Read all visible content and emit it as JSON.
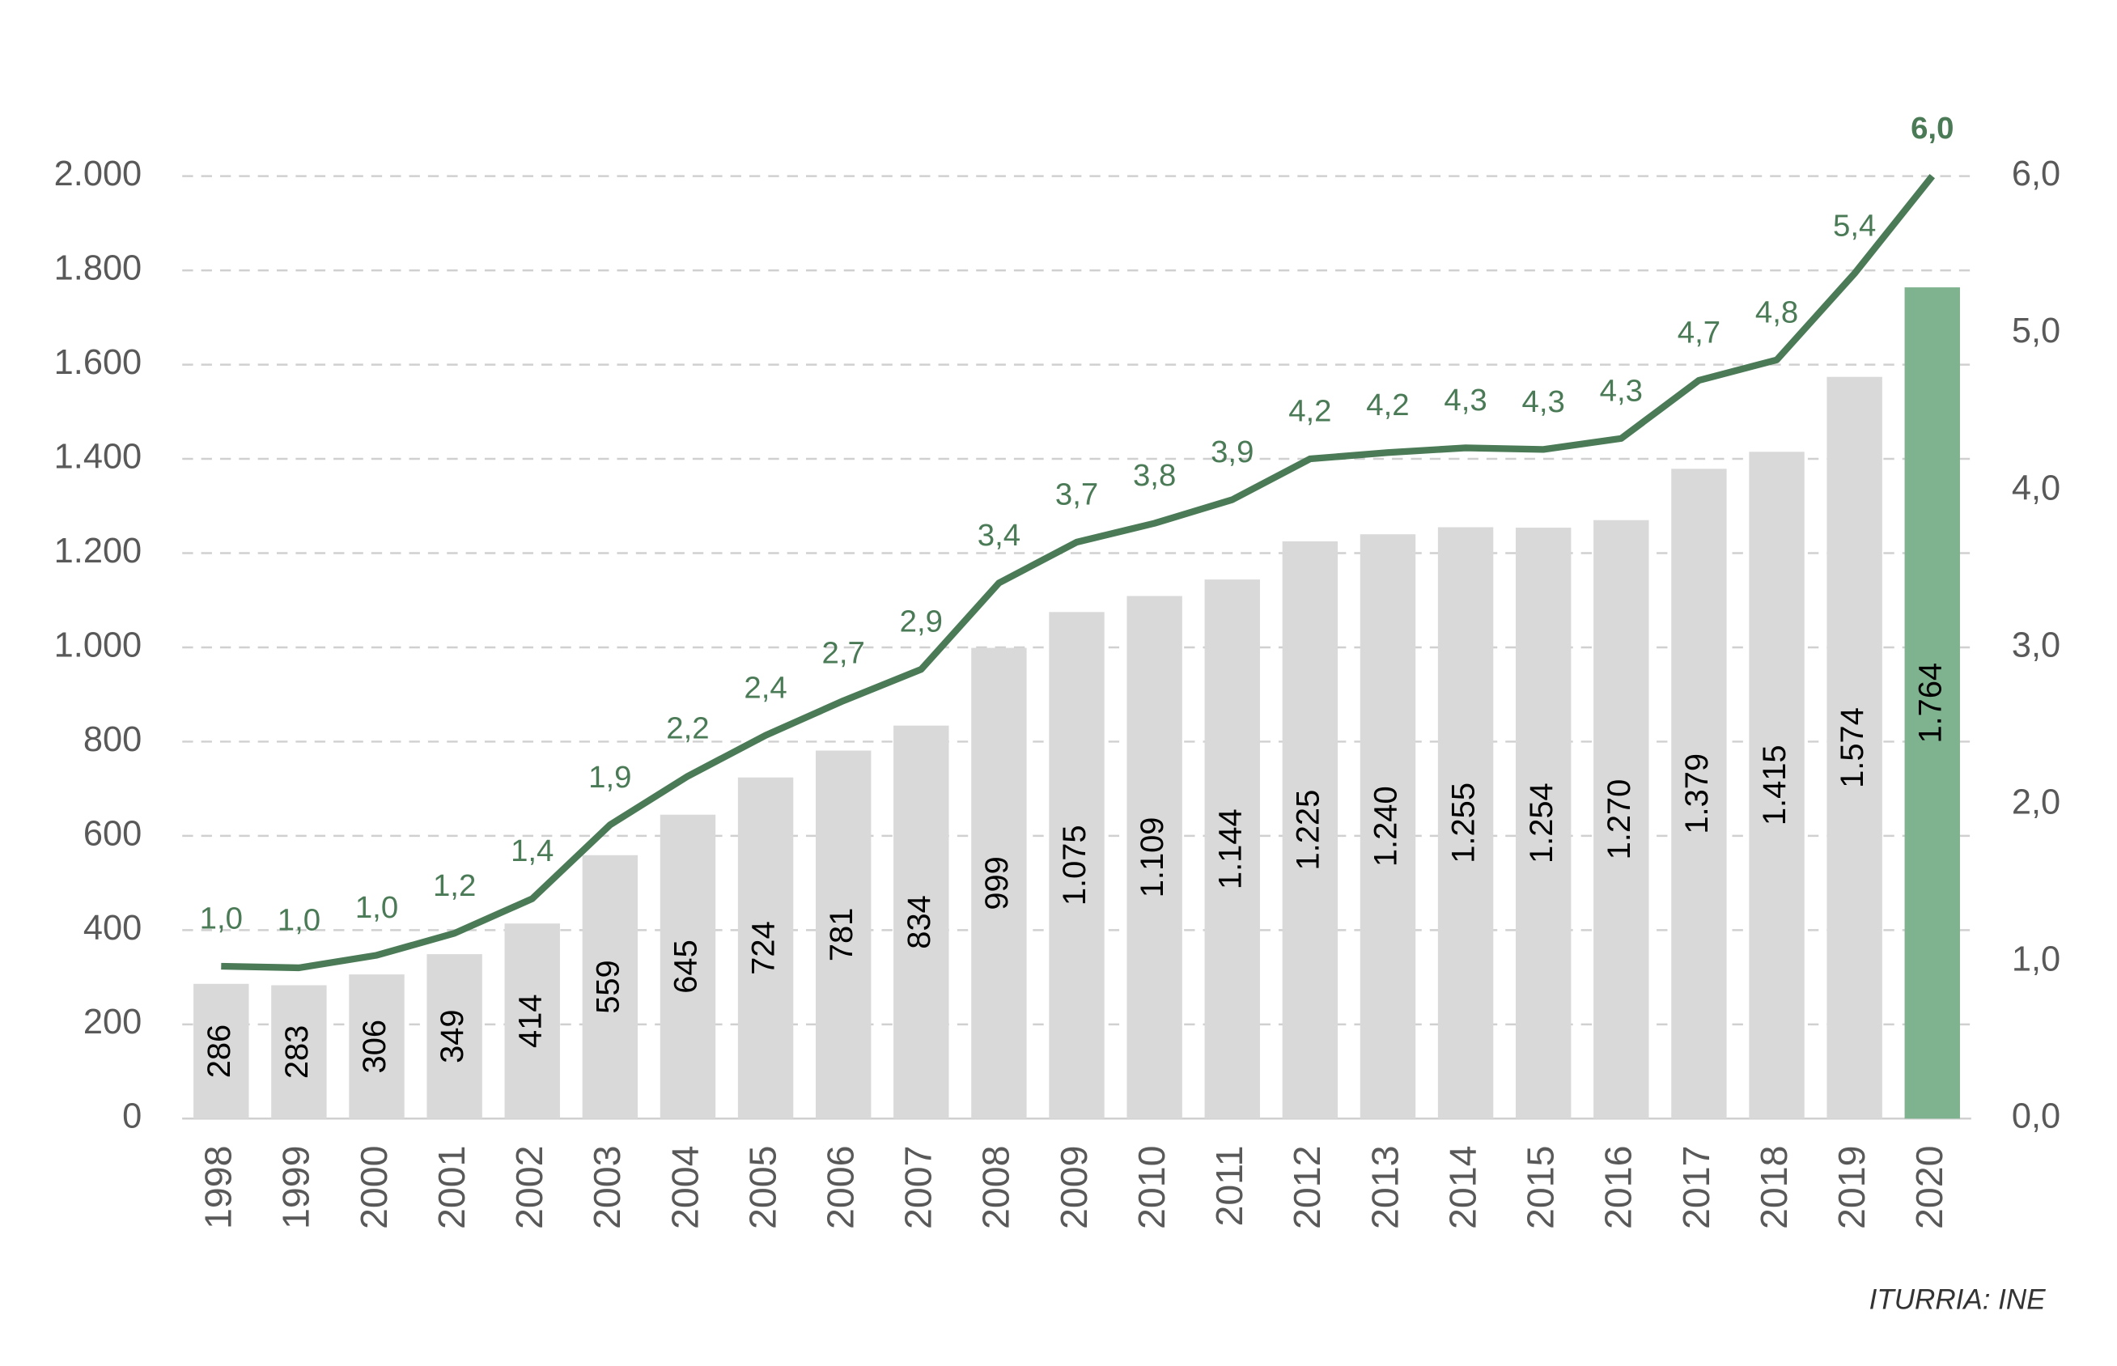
{
  "chart_data": {
    "type": "combo",
    "categories": [
      "1998",
      "1999",
      "2000",
      "2001",
      "2002",
      "2003",
      "2004",
      "2005",
      "2006",
      "2007",
      "2008",
      "2009",
      "2010",
      "2011",
      "2012",
      "2013",
      "2014",
      "2015",
      "2016",
      "2017",
      "2018",
      "2019",
      "2020"
    ],
    "series": [
      {
        "type": "bar",
        "values": [
          286,
          283,
          306,
          349,
          414,
          559,
          645,
          724,
          781,
          834,
          999,
          1075,
          1109,
          1144,
          1225,
          1240,
          1255,
          1254,
          1270,
          1379,
          1415,
          1574,
          1764
        ],
        "value_labels": [
          "286",
          "283",
          "306",
          "349",
          "414",
          "559",
          "645",
          "724",
          "781",
          "834",
          "999",
          "1.075",
          "1.109",
          "1.144",
          "1.225",
          "1.240",
          "1.255",
          "1.254",
          "1.270",
          "1.379",
          "1.415",
          "1.574",
          "1.764"
        ],
        "colors": [
          "#d9d9d9",
          "#d9d9d9",
          "#d9d9d9",
          "#d9d9d9",
          "#d9d9d9",
          "#d9d9d9",
          "#d9d9d9",
          "#d9d9d9",
          "#d9d9d9",
          "#d9d9d9",
          "#d9d9d9",
          "#d9d9d9",
          "#d9d9d9",
          "#d9d9d9",
          "#d9d9d9",
          "#d9d9d9",
          "#d9d9d9",
          "#d9d9d9",
          "#d9d9d9",
          "#d9d9d9",
          "#d9d9d9",
          "#d9d9d9",
          "#7fb28f"
        ]
      },
      {
        "type": "line",
        "axis": "y2",
        "color": "#4a7a56",
        "values": [
          0.97,
          0.96,
          1.04,
          1.18,
          1.4,
          1.87,
          2.18,
          2.44,
          2.66,
          2.86,
          3.41,
          3.67,
          3.79,
          3.94,
          4.2,
          4.24,
          4.27,
          4.26,
          4.33,
          4.7,
          4.83,
          5.38,
          6.0
        ],
        "value_labels": [
          "1,0",
          "1,0",
          "1,0",
          "1,2",
          "1,4",
          "1,9",
          "2,2",
          "2,4",
          "2,7",
          "2,9",
          "3,4",
          "3,7",
          "3,8",
          "3,9",
          "4,2",
          "4,2",
          "4,3",
          "4,3",
          "4,3",
          "4,7",
          "4,8",
          "5,4",
          "6,0"
        ]
      }
    ],
    "ylim": [
      0,
      2000
    ],
    "yticks": [
      0,
      200,
      400,
      600,
      800,
      {
        "value": 1000,
        "label": "1.000"
      },
      {
        "value": 1200,
        "label": "1.200"
      },
      {
        "value": 1400,
        "label": "1.400"
      },
      {
        "value": 1600,
        "label": "1.600"
      },
      {
        "value": 1800,
        "label": "1.800"
      },
      {
        "value": 2000,
        "label": "2.000"
      }
    ],
    "y2lim": [
      0,
      6
    ],
    "y2ticks": [
      {
        "value": 0,
        "label": "0,0"
      },
      {
        "value": 1,
        "label": "1,0"
      },
      {
        "value": 2,
        "label": "2,0"
      },
      {
        "value": 3,
        "label": "3,0"
      },
      {
        "value": 4,
        "label": "4,0"
      },
      {
        "value": 5,
        "label": "5,0"
      },
      {
        "value": 6,
        "label": "6,0"
      }
    ],
    "grid": true,
    "source": "ITURRIA: INE"
  }
}
